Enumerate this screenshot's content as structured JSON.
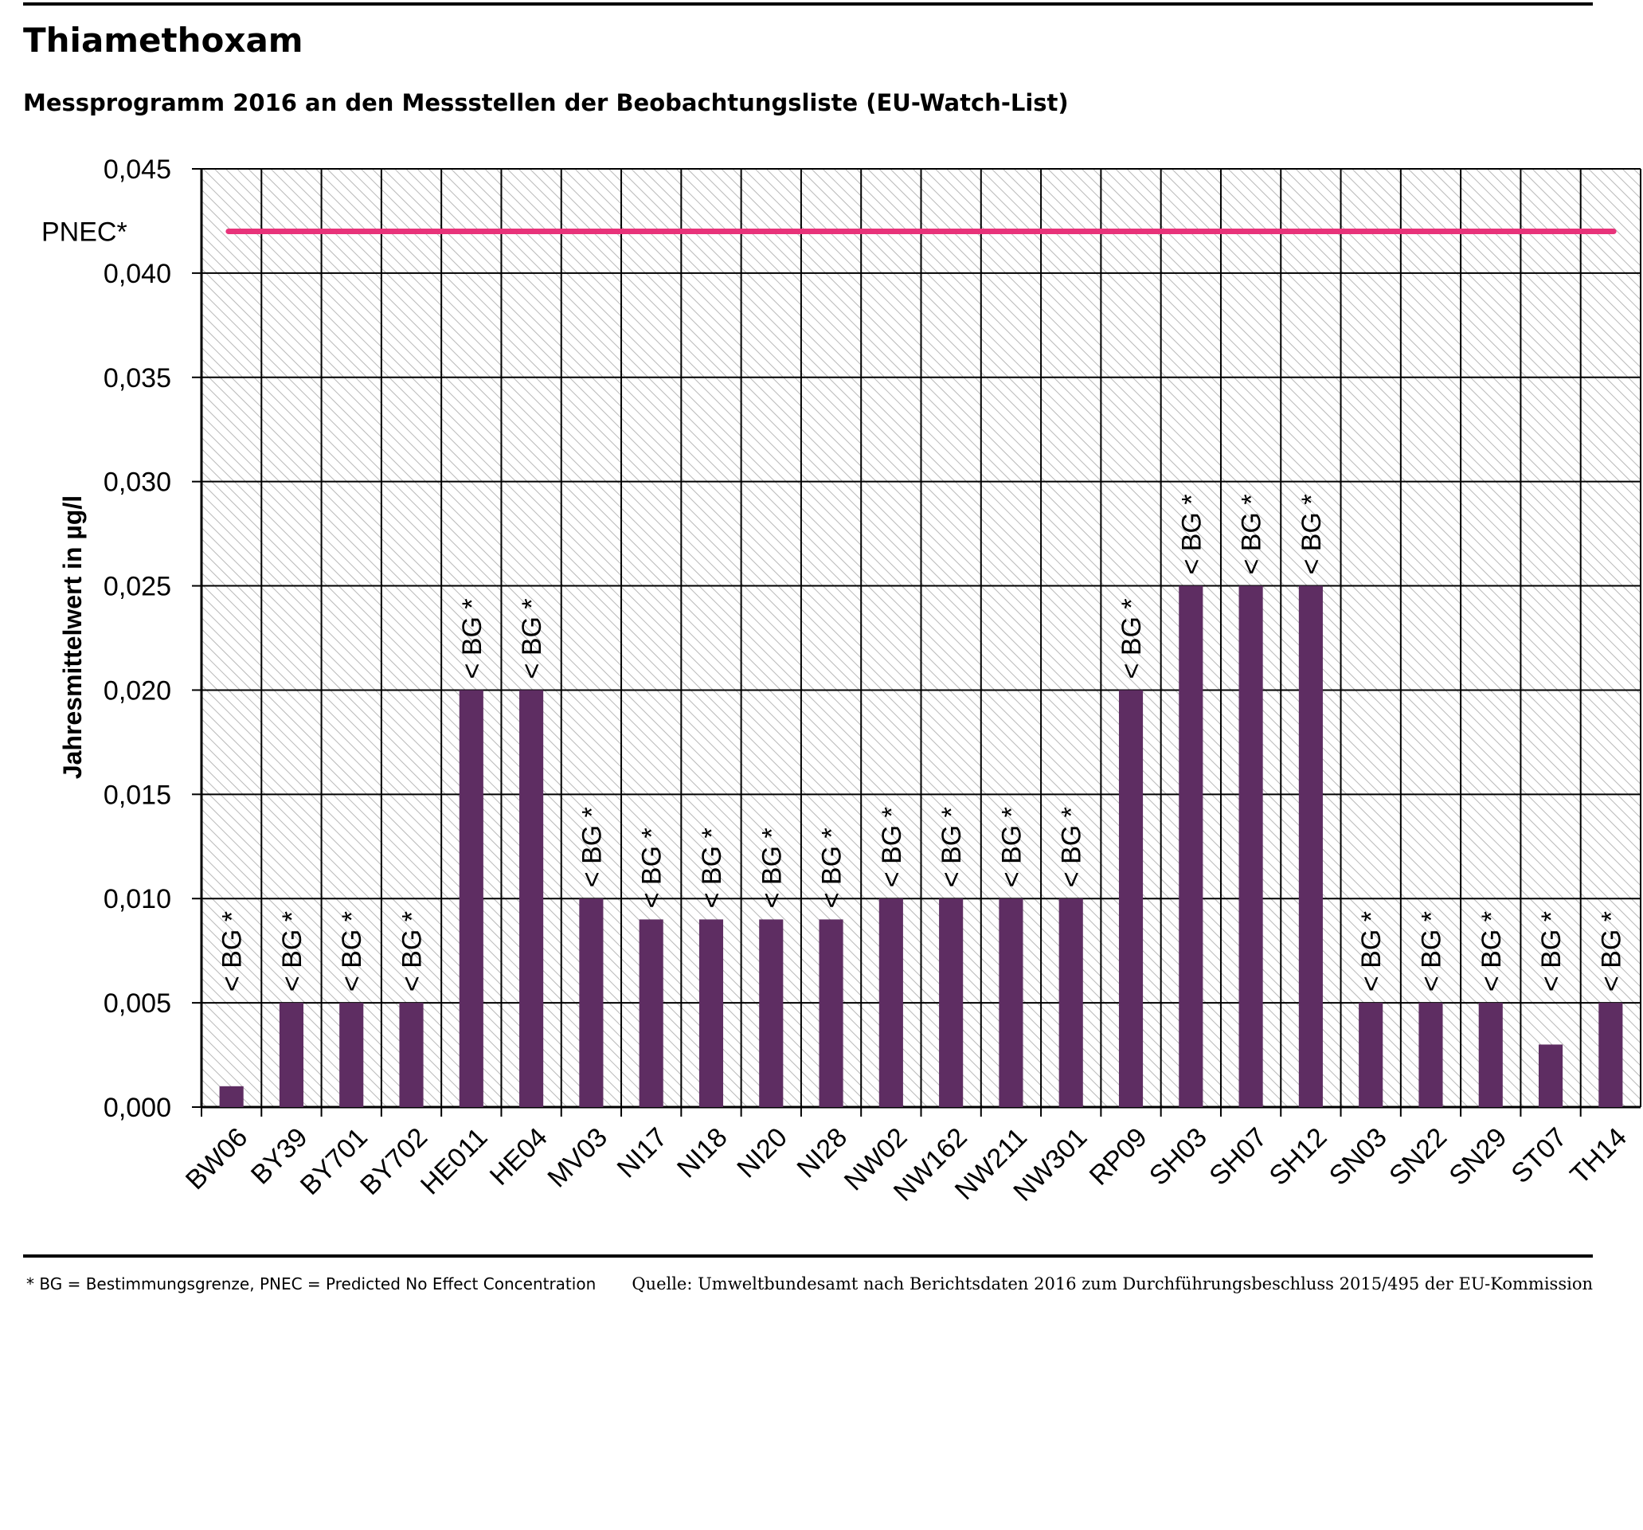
{
  "chart_data": {
    "type": "bar",
    "title": "Thiamethoxam",
    "subtitle": "Messprogramm 2016 an den Messstellen der Beobachtungsliste (EU-Watch-List)",
    "xlabel": "",
    "ylabel": "Jahresmittelwert in µg/l",
    "ylim": [
      0,
      0.045
    ],
    "yticks": [
      "0,000",
      "0,005",
      "0,010",
      "0,015",
      "0,020",
      "0,025",
      "0,030",
      "0,035",
      "0,040",
      "0,045"
    ],
    "grid": true,
    "categories": [
      "BW06",
      "BY39",
      "BY701",
      "BY702",
      "HE011",
      "HE04",
      "MV03",
      "NI17",
      "NI18",
      "NI20",
      "NI28",
      "NW02",
      "NW162",
      "NW211",
      "NW301",
      "RP09",
      "SH03",
      "SH07",
      "SH12",
      "SN03",
      "SN22",
      "SN29",
      "ST07",
      "TH14"
    ],
    "values": [
      0.001,
      0.005,
      0.005,
      0.005,
      0.02,
      0.02,
      0.01,
      0.009,
      0.009,
      0.009,
      0.009,
      0.01,
      0.01,
      0.01,
      0.01,
      0.02,
      0.025,
      0.025,
      0.025,
      0.005,
      0.005,
      0.005,
      0.003,
      0.005
    ],
    "bar_annotation": "< BG *",
    "reference_line": {
      "label": "PNEC*",
      "value": 0.042,
      "color": "#e8337a"
    },
    "bar_color": "#5e2d62"
  },
  "footer": {
    "footnote": "* BG = Bestimmungsgrenze, PNEC = Predicted No Effect Concentration",
    "source": "Quelle: Umweltbundesamt nach Berichtsdaten 2016 zum Durchführungsbeschluss 2015/495 der EU-Kommission"
  }
}
